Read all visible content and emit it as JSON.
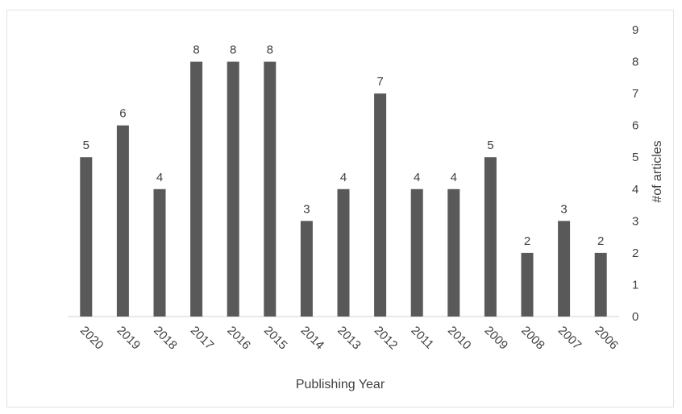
{
  "chart_data": {
    "type": "bar",
    "title": "",
    "xlabel": "Publishing Year",
    "ylabel": "#of articles",
    "categories": [
      "2020",
      "2019",
      "2018",
      "2017",
      "2016",
      "2015",
      "2014",
      "2013",
      "2012",
      "2011",
      "2010",
      "2009",
      "2008",
      "2007",
      "2006"
    ],
    "values": [
      5,
      6,
      4,
      8,
      8,
      8,
      3,
      4,
      7,
      4,
      4,
      5,
      2,
      3,
      2
    ],
    "ylim": [
      0,
      9
    ],
    "yticks": [
      "0",
      "1",
      "2",
      "3",
      "4",
      "5",
      "6",
      "7",
      "8",
      "9"
    ],
    "y_axis_position": "right",
    "grid": false,
    "legend": "none",
    "bar_color": "#595959"
  }
}
